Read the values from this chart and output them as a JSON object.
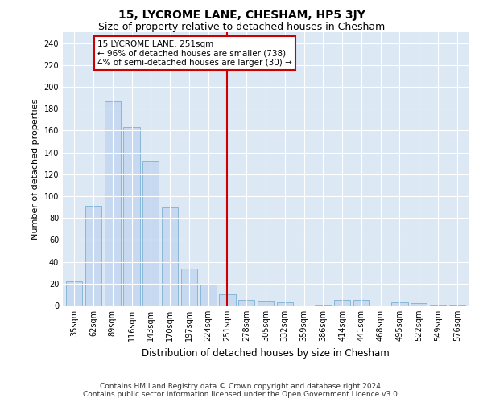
{
  "title": "15, LYCROME LANE, CHESHAM, HP5 3JY",
  "subtitle": "Size of property relative to detached houses in Chesham",
  "xlabel": "Distribution of detached houses by size in Chesham",
  "ylabel": "Number of detached properties",
  "categories": [
    "35sqm",
    "62sqm",
    "89sqm",
    "116sqm",
    "143sqm",
    "170sqm",
    "197sqm",
    "224sqm",
    "251sqm",
    "278sqm",
    "305sqm",
    "332sqm",
    "359sqm",
    "386sqm",
    "414sqm",
    "441sqm",
    "468sqm",
    "495sqm",
    "522sqm",
    "549sqm",
    "576sqm"
  ],
  "values": [
    22,
    91,
    187,
    163,
    132,
    90,
    34,
    20,
    10,
    5,
    4,
    3,
    0,
    1,
    5,
    5,
    0,
    3,
    2,
    1,
    1
  ],
  "bar_color": "#c6d9f0",
  "bar_edge_color": "#7bafd4",
  "highlight_index": 8,
  "vline_color": "#cc0000",
  "ylim": [
    0,
    250
  ],
  "yticks": [
    0,
    20,
    40,
    60,
    80,
    100,
    120,
    140,
    160,
    180,
    200,
    220,
    240
  ],
  "annotation_line1": "15 LYCROME LANE: 251sqm",
  "annotation_line2": "← 96% of detached houses are smaller (738)",
  "annotation_line3": "4% of semi-detached houses are larger (30) →",
  "annotation_box_color": "#cc0000",
  "background_color": "#dde8f5",
  "footer_line1": "Contains HM Land Registry data © Crown copyright and database right 2024.",
  "footer_line2": "Contains public sector information licensed under the Open Government Licence v3.0.",
  "title_fontsize": 10,
  "subtitle_fontsize": 9,
  "xlabel_fontsize": 8.5,
  "ylabel_fontsize": 8,
  "tick_fontsize": 7,
  "annotation_fontsize": 7.5,
  "footer_fontsize": 6.5
}
